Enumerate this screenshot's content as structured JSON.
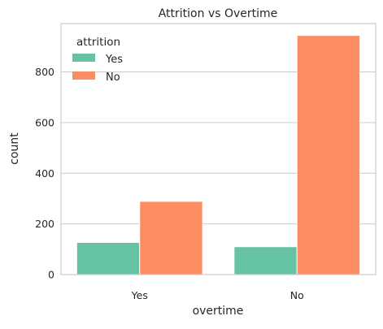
{
  "chart_data": {
    "type": "bar",
    "title": "Attrition vs Overtime",
    "xlabel": "overtime",
    "ylabel": "count",
    "categories": [
      "Yes",
      "No"
    ],
    "series": [
      {
        "name": "Yes",
        "values": [
          127,
          110
        ],
        "color": "#66c2a5"
      },
      {
        "name": "No",
        "values": [
          289,
          944
        ],
        "color": "#fc8d62"
      }
    ],
    "ylim": [
      0,
      991
    ],
    "yticks": [
      0,
      200,
      400,
      600,
      800
    ],
    "grid": true,
    "legend": {
      "title": "attrition",
      "placement": "top-left"
    }
  }
}
